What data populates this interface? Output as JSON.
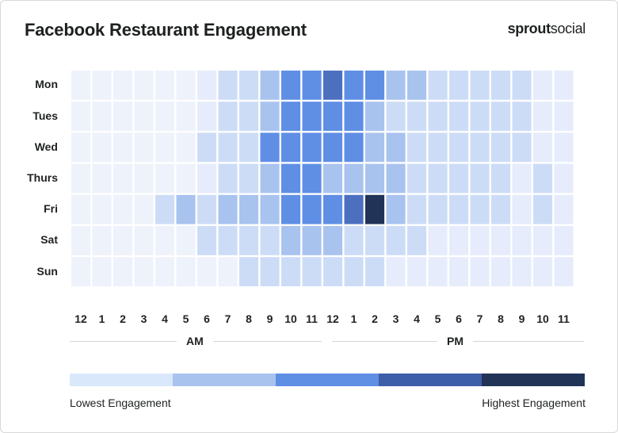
{
  "header": {
    "title": "Facebook Restaurant Engagement",
    "brand_bold": "sprout",
    "brand_light": "social"
  },
  "chart_data": {
    "type": "heatmap",
    "title": "Facebook Restaurant Engagement",
    "rows": [
      "Mon",
      "Tues",
      "Wed",
      "Thurs",
      "Fri",
      "Sat",
      "Sun"
    ],
    "columns": [
      "12",
      "1",
      "2",
      "3",
      "4",
      "5",
      "6",
      "7",
      "8",
      "9",
      "10",
      "11",
      "12",
      "1",
      "2",
      "3",
      "4",
      "5",
      "6",
      "7",
      "8",
      "9",
      "10",
      "11"
    ],
    "period_labels": [
      "AM",
      "PM"
    ],
    "scale": [
      1,
      5
    ],
    "values": [
      [
        0.3,
        0.3,
        0.3,
        0.3,
        0.3,
        0.3,
        0.4,
        1.0,
        1.0,
        2.0,
        3.0,
        3.0,
        4.0,
        3.0,
        3.0,
        2.0,
        2.0,
        1.0,
        1.0,
        1.0,
        1.0,
        1.0,
        0.5,
        0.5
      ],
      [
        0.3,
        0.3,
        0.3,
        0.3,
        0.3,
        0.3,
        0.4,
        1.0,
        1.0,
        2.0,
        3.0,
        3.0,
        3.0,
        3.0,
        2.0,
        1.0,
        1.0,
        1.0,
        1.0,
        1.0,
        1.0,
        1.0,
        0.5,
        0.5
      ],
      [
        0.3,
        0.3,
        0.3,
        0.3,
        0.3,
        0.3,
        1.0,
        1.0,
        1.0,
        3.0,
        3.0,
        3.0,
        3.0,
        3.0,
        2.0,
        2.0,
        1.0,
        1.0,
        1.0,
        1.0,
        1.0,
        1.0,
        0.5,
        0.5
      ],
      [
        0.3,
        0.3,
        0.3,
        0.3,
        0.3,
        0.3,
        0.4,
        1.0,
        1.0,
        2.0,
        3.0,
        3.0,
        2.0,
        2.0,
        2.0,
        2.0,
        1.0,
        1.0,
        1.0,
        1.0,
        1.0,
        0.5,
        1.0,
        0.5
      ],
      [
        0.3,
        0.3,
        0.3,
        0.3,
        1.0,
        2.0,
        1.0,
        2.0,
        2.0,
        2.0,
        3.0,
        3.0,
        3.0,
        4.0,
        5.0,
        2.0,
        1.0,
        1.0,
        1.0,
        1.0,
        1.0,
        0.5,
        1.0,
        0.5
      ],
      [
        0.3,
        0.3,
        0.3,
        0.3,
        0.3,
        0.3,
        1.0,
        1.0,
        1.0,
        1.0,
        2.0,
        2.0,
        2.0,
        1.0,
        1.0,
        1.0,
        1.0,
        0.5,
        0.5,
        0.5,
        0.5,
        0.5,
        0.5,
        0.5
      ],
      [
        0.3,
        0.3,
        0.3,
        0.3,
        0.3,
        0.3,
        0.3,
        0.3,
        1.0,
        1.0,
        1.0,
        1.0,
        1.0,
        1.0,
        1.0,
        0.5,
        0.5,
        0.5,
        0.5,
        0.5,
        0.5,
        0.5,
        0.5,
        0.5
      ]
    ],
    "legend": {
      "low_label": "Lowest Engagement",
      "high_label": "Highest Engagement",
      "colors": [
        "#dae8fb",
        "#a9c3ef",
        "#5f8ee5",
        "#3d5ea8",
        "#213356"
      ]
    }
  }
}
